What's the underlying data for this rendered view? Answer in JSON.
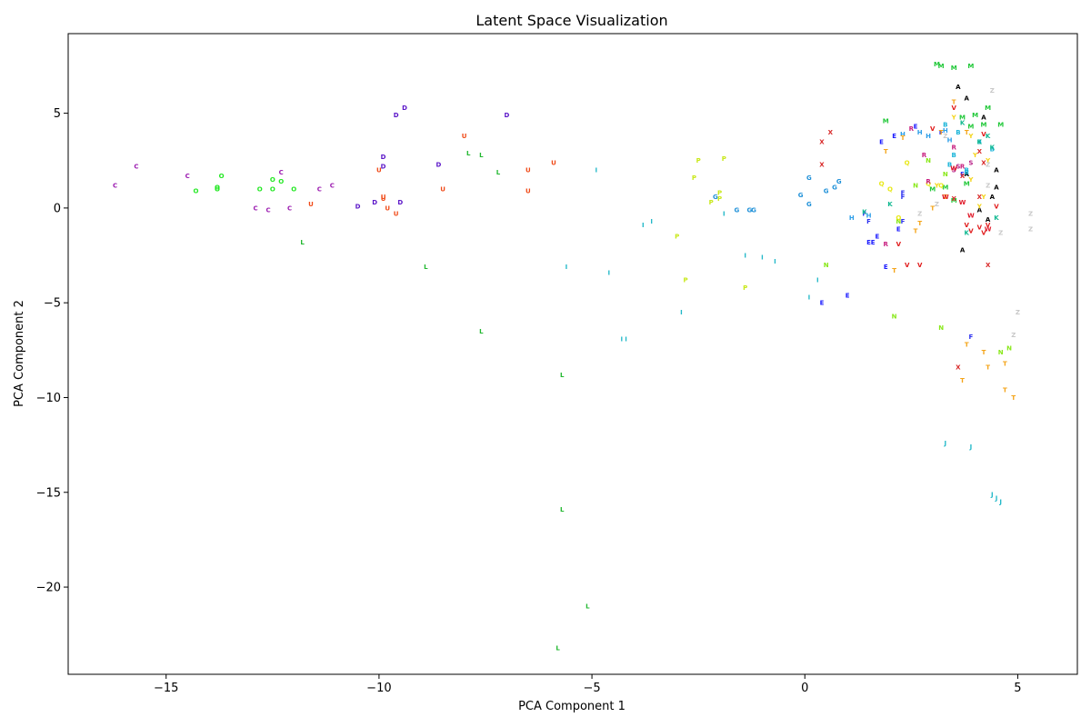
{
  "chart_data": {
    "type": "scatter",
    "title": "Latent Space Visualization",
    "xlabel": "PCA Component 1",
    "ylabel": "PCA Component 2",
    "xlim": [
      -17.3,
      6.4
    ],
    "ylim": [
      -24.6,
      9.2
    ],
    "xticks": [
      -15,
      -10,
      -5,
      0,
      5
    ],
    "xtick_labels": [
      "−15",
      "−10",
      "−5",
      "0",
      "5"
    ],
    "yticks": [
      5,
      0,
      -5,
      -10,
      -15,
      -20
    ],
    "ytick_labels": [
      "5",
      "0",
      "−5",
      "−10",
      "−15",
      "−20"
    ],
    "grid": false,
    "legend": "none",
    "series": [
      {
        "letter": "A",
        "color": "#000000",
        "points": [
          [
            3.6,
            6.4
          ],
          [
            3.8,
            5.8
          ],
          [
            4.2,
            4.8
          ],
          [
            4.5,
            2.0
          ],
          [
            4.5,
            1.1
          ],
          [
            3.8,
            1.8
          ],
          [
            4.4,
            0.6
          ],
          [
            4.1,
            -0.1
          ],
          [
            4.3,
            -0.6
          ],
          [
            3.7,
            -2.2
          ]
        ]
      },
      {
        "letter": "B",
        "color": "#18b4d8",
        "points": [
          [
            3.5,
            2.8
          ],
          [
            3.8,
            2.0
          ],
          [
            3.3,
            4.4
          ],
          [
            3.6,
            4.0
          ],
          [
            4.1,
            3.5
          ],
          [
            4.4,
            3.1
          ],
          [
            3.4,
            2.3
          ],
          [
            3.8,
            1.9
          ]
        ]
      },
      {
        "letter": "C",
        "color": "#9b1bb0",
        "points": [
          [
            -16.2,
            1.2
          ],
          [
            -15.7,
            2.2
          ],
          [
            -14.5,
            1.7
          ],
          [
            -12.9,
            0.0
          ],
          [
            -12.6,
            -0.1
          ],
          [
            -12.1,
            -0.0
          ],
          [
            -11.4,
            1.0
          ],
          [
            -11.1,
            1.2
          ],
          [
            -12.3,
            1.9
          ]
        ]
      },
      {
        "letter": "D",
        "color": "#5a14c8",
        "points": [
          [
            -9.6,
            4.9
          ],
          [
            -9.4,
            5.3
          ],
          [
            -7.0,
            4.9
          ],
          [
            -9.9,
            2.7
          ],
          [
            -9.9,
            2.2
          ],
          [
            -8.6,
            2.3
          ],
          [
            -10.5,
            0.1
          ],
          [
            -10.1,
            0.3
          ],
          [
            -9.5,
            0.3
          ]
        ]
      },
      {
        "letter": "E",
        "color": "#1a1aff",
        "points": [
          [
            1.8,
            3.5
          ],
          [
            2.1,
            3.8
          ],
          [
            2.6,
            4.3
          ],
          [
            1.6,
            -1.8
          ],
          [
            1.5,
            -1.8
          ],
          [
            1.7,
            -1.5
          ],
          [
            2.2,
            -1.1
          ],
          [
            0.4,
            -5.0
          ],
          [
            1.0,
            -4.6
          ],
          [
            1.9,
            -3.1
          ]
        ]
      },
      {
        "letter": "F",
        "color": "#2b2ff0",
        "points": [
          [
            2.3,
            0.6
          ],
          [
            2.3,
            0.8
          ],
          [
            1.4,
            -0.3
          ],
          [
            1.5,
            -0.7
          ],
          [
            3.2,
            4.0
          ],
          [
            3.7,
            1.8
          ],
          [
            2.3,
            -0.7
          ],
          [
            3.9,
            -6.8
          ]
        ]
      },
      {
        "letter": "G",
        "color": "#1e90d8",
        "points": [
          [
            -2.1,
            0.6
          ],
          [
            -1.6,
            -0.1
          ],
          [
            -1.3,
            -0.1
          ],
          [
            -1.2,
            -0.1
          ],
          [
            0.1,
            1.6
          ],
          [
            0.5,
            0.9
          ],
          [
            0.7,
            1.1
          ],
          [
            0.8,
            1.4
          ],
          [
            -0.1,
            0.7
          ],
          [
            0.1,
            0.2
          ]
        ]
      },
      {
        "letter": "H",
        "color": "#2d9ee8",
        "points": [
          [
            2.7,
            4.0
          ],
          [
            3.3,
            4.1
          ],
          [
            2.9,
            3.8
          ],
          [
            3.4,
            3.6
          ],
          [
            1.1,
            -0.5
          ],
          [
            1.5,
            -0.4
          ],
          [
            2.3,
            3.9
          ]
        ]
      },
      {
        "letter": "I",
        "color": "#20b8c8",
        "points": [
          [
            -4.9,
            2.0
          ],
          [
            -3.8,
            -0.9
          ],
          [
            -3.6,
            -0.7
          ],
          [
            -1.4,
            -2.5
          ],
          [
            -1.0,
            -2.6
          ],
          [
            -0.7,
            -2.8
          ],
          [
            0.3,
            -3.8
          ],
          [
            0.1,
            -4.7
          ],
          [
            -2.9,
            -5.5
          ],
          [
            -4.3,
            -6.9
          ],
          [
            -4.2,
            -6.9
          ],
          [
            -5.6,
            -3.1
          ],
          [
            -4.6,
            -3.4
          ],
          [
            -1.9,
            -0.3
          ]
        ]
      },
      {
        "letter": "J",
        "color": "#20b8c8",
        "points": [
          [
            3.3,
            -12.4
          ],
          [
            3.9,
            -12.6
          ],
          [
            4.4,
            -15.1
          ],
          [
            4.5,
            -15.3
          ],
          [
            4.6,
            -15.5
          ]
        ]
      },
      {
        "letter": "K",
        "color": "#10b890",
        "points": [
          [
            4.3,
            3.8
          ],
          [
            4.4,
            3.2
          ],
          [
            4.1,
            3.5
          ],
          [
            3.7,
            4.5
          ],
          [
            1.4,
            -0.2
          ],
          [
            2.0,
            0.2
          ],
          [
            4.5,
            -0.5
          ],
          [
            3.8,
            -1.3
          ]
        ]
      },
      {
        "letter": "L",
        "color": "#22b830",
        "points": [
          [
            -7.9,
            2.9
          ],
          [
            -7.6,
            2.8
          ],
          [
            -7.2,
            1.9
          ],
          [
            -11.8,
            -1.8
          ],
          [
            -8.9,
            -3.1
          ],
          [
            -7.6,
            -6.5
          ],
          [
            -5.7,
            -8.8
          ],
          [
            -5.7,
            -15.9
          ],
          [
            -5.1,
            -21.0
          ],
          [
            -5.8,
            -23.2
          ]
        ]
      },
      {
        "letter": "M",
        "color": "#20c838",
        "points": [
          [
            3.1,
            7.6
          ],
          [
            3.2,
            7.5
          ],
          [
            3.5,
            7.4
          ],
          [
            3.9,
            7.5
          ],
          [
            4.0,
            4.9
          ],
          [
            3.7,
            4.8
          ],
          [
            3.9,
            4.3
          ],
          [
            4.3,
            5.3
          ],
          [
            4.6,
            4.4
          ],
          [
            3.5,
            0.4
          ],
          [
            3.3,
            1.1
          ],
          [
            3.0,
            1.0
          ],
          [
            3.8,
            1.3
          ],
          [
            1.9,
            4.6
          ],
          [
            4.2,
            4.4
          ]
        ]
      },
      {
        "letter": "N",
        "color": "#88e818",
        "points": [
          [
            2.9,
            2.5
          ],
          [
            2.6,
            1.2
          ],
          [
            3.3,
            1.8
          ],
          [
            4.6,
            -7.6
          ],
          [
            4.8,
            -7.4
          ],
          [
            3.2,
            -6.3
          ],
          [
            2.1,
            -5.7
          ],
          [
            0.5,
            -3.0
          ],
          [
            2.2,
            -0.7
          ]
        ]
      },
      {
        "letter": "O",
        "color": "#22e822",
        "points": [
          [
            -14.3,
            0.9
          ],
          [
            -13.8,
            1.0
          ],
          [
            -13.8,
            1.1
          ],
          [
            -13.7,
            1.7
          ],
          [
            -12.8,
            1.0
          ],
          [
            -12.5,
            1.0
          ],
          [
            -12.5,
            1.5
          ],
          [
            -12.3,
            1.4
          ],
          [
            -12.0,
            1.0
          ]
        ]
      },
      {
        "letter": "P",
        "color": "#c8e818",
        "points": [
          [
            -2.5,
            2.5
          ],
          [
            -2.6,
            1.6
          ],
          [
            -2.2,
            0.3
          ],
          [
            -2.0,
            0.5
          ],
          [
            -2.0,
            0.8
          ],
          [
            -1.9,
            2.6
          ],
          [
            -3.0,
            -1.5
          ],
          [
            -2.8,
            -3.8
          ],
          [
            -1.4,
            -4.2
          ]
        ]
      },
      {
        "letter": "Q",
        "color": "#e8e818",
        "points": [
          [
            2.0,
            1.0
          ],
          [
            1.8,
            1.3
          ],
          [
            2.2,
            -0.5
          ],
          [
            3.2,
            1.2
          ],
          [
            2.4,
            2.4
          ],
          [
            2.9,
            1.3
          ]
        ]
      },
      {
        "letter": "R",
        "color": "#c82080",
        "points": [
          [
            2.8,
            2.8
          ],
          [
            2.9,
            1.4
          ],
          [
            3.7,
            2.2
          ],
          [
            3.5,
            3.2
          ],
          [
            2.5,
            4.2
          ],
          [
            1.9,
            -1.9
          ]
        ]
      },
      {
        "letter": "S",
        "color": "#b82288",
        "points": [
          [
            3.6,
            2.2
          ],
          [
            3.9,
            2.4
          ],
          [
            3.5,
            2.0
          ]
        ]
      },
      {
        "letter": "T",
        "color": "#f4a418",
        "points": [
          [
            2.3,
            3.7
          ],
          [
            1.9,
            3.0
          ],
          [
            2.6,
            -1.2
          ],
          [
            2.7,
            -0.8
          ],
          [
            3.5,
            5.6
          ],
          [
            3.8,
            4.0
          ],
          [
            3.0,
            0.0
          ],
          [
            3.3,
            0.6
          ],
          [
            3.8,
            -7.2
          ],
          [
            3.7,
            -9.1
          ],
          [
            4.2,
            -7.6
          ],
          [
            4.3,
            -8.4
          ],
          [
            4.7,
            -8.2
          ],
          [
            4.7,
            -9.6
          ],
          [
            4.9,
            -10.0
          ],
          [
            2.1,
            -3.3
          ],
          [
            3.2,
            4.0
          ]
        ]
      },
      {
        "letter": "U",
        "color": "#f04a18",
        "points": [
          [
            -8.0,
            3.8
          ],
          [
            -6.5,
            2.0
          ],
          [
            -5.9,
            2.4
          ],
          [
            -10.0,
            2.0
          ],
          [
            -9.9,
            0.6
          ],
          [
            -9.9,
            0.5
          ],
          [
            -9.8,
            0.0
          ],
          [
            -9.6,
            -0.3
          ],
          [
            -11.6,
            0.2
          ],
          [
            -8.5,
            1.0
          ],
          [
            -6.5,
            0.9
          ]
        ]
      },
      {
        "letter": "V",
        "color": "#e01818",
        "points": [
          [
            3.5,
            5.3
          ],
          [
            4.2,
            3.9
          ],
          [
            3.0,
            4.2
          ],
          [
            4.2,
            -1.3
          ],
          [
            4.5,
            0.1
          ],
          [
            3.9,
            -1.2
          ],
          [
            4.3,
            -0.9
          ],
          [
            2.2,
            -1.9
          ],
          [
            2.4,
            -3.0
          ],
          [
            2.7,
            -3.0
          ],
          [
            3.8,
            -0.9
          ],
          [
            4.1,
            -1.0
          ]
        ]
      },
      {
        "letter": "W",
        "color": "#e01828",
        "points": [
          [
            3.3,
            0.6
          ],
          [
            3.5,
            2.1
          ],
          [
            3.7,
            0.3
          ],
          [
            3.9,
            -0.4
          ],
          [
            4.3,
            -1.1
          ]
        ]
      },
      {
        "letter": "X",
        "color": "#d82828",
        "points": [
          [
            0.4,
            3.5
          ],
          [
            0.6,
            4.0
          ],
          [
            0.4,
            2.3
          ],
          [
            3.5,
            0.5
          ],
          [
            3.7,
            1.7
          ],
          [
            4.1,
            3.0
          ],
          [
            4.1,
            0.6
          ],
          [
            3.6,
            -8.4
          ],
          [
            4.3,
            -3.0
          ],
          [
            4.2,
            2.4
          ]
        ]
      },
      {
        "letter": "Y",
        "color": "#f4d418",
        "points": [
          [
            3.9,
            3.8
          ],
          [
            4.2,
            0.6
          ],
          [
            4.1,
            0.1
          ],
          [
            4.0,
            2.8
          ],
          [
            3.9,
            1.5
          ],
          [
            3.5,
            4.8
          ],
          [
            3.1,
            1.2
          ],
          [
            4.3,
            2.5
          ]
        ]
      },
      {
        "letter": "Z",
        "color": "#c8c8c8",
        "points": [
          [
            4.4,
            6.2
          ],
          [
            4.3,
            2.3
          ],
          [
            4.6,
            -1.3
          ],
          [
            5.3,
            -0.3
          ],
          [
            5.3,
            -1.1
          ],
          [
            5.0,
            -5.5
          ],
          [
            4.9,
            -6.7
          ],
          [
            4.3,
            1.2
          ],
          [
            3.1,
            0.2
          ],
          [
            3.3,
            3.8
          ],
          [
            2.7,
            -0.3
          ]
        ]
      }
    ]
  }
}
